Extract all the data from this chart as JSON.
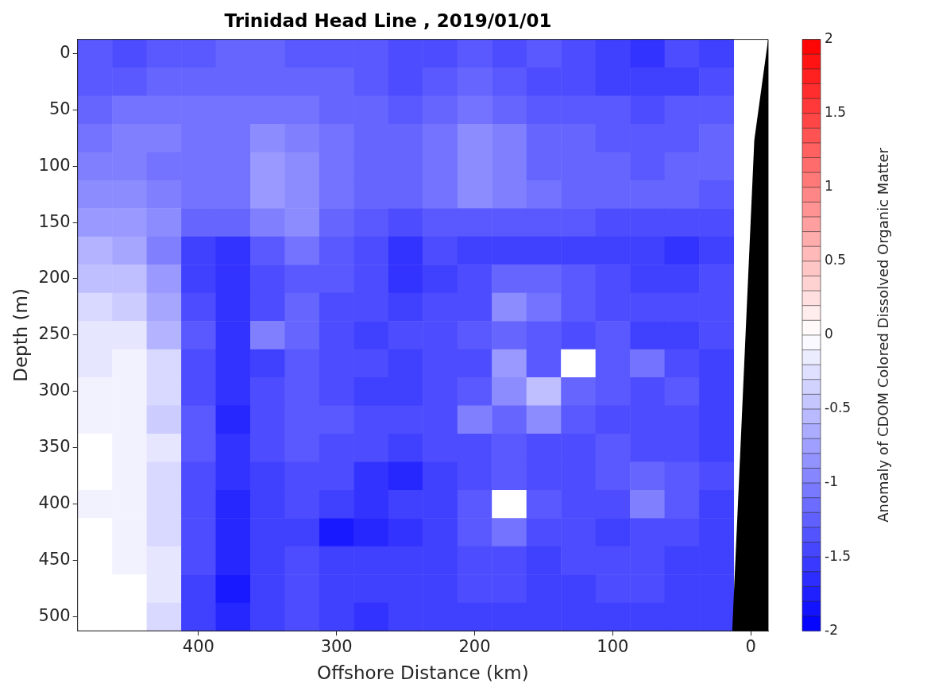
{
  "chart_data": {
    "type": "heatmap",
    "title": "Trinidad Head Line , 2019/01/01",
    "xlabel": "Offshore Distance (km)",
    "ylabel": "Depth (m)",
    "clabel": "Anomaly of CDOM Colored Dissolved Organic Matter",
    "clim": [
      -2,
      2
    ],
    "cticks": [
      -2,
      -1.5,
      -1,
      -0.5,
      0,
      0.5,
      1,
      1.5,
      2
    ],
    "categories": [
      null,
      null,
      null,
      "400",
      null,
      null,
      null,
      "300",
      null,
      null,
      null,
      "200",
      null,
      null,
      null,
      "100",
      null,
      null,
      null,
      "0"
    ],
    "y_categories": [
      "0",
      null,
      "50",
      null,
      "100",
      null,
      "150",
      null,
      "200",
      null,
      "250",
      null,
      "300",
      null,
      "350",
      null,
      "400",
      null,
      "450",
      null,
      "500"
    ],
    "cells": [
      [
        -1.3,
        -1.4,
        -1.3,
        -1.3,
        -1.2,
        -1.2,
        -1.3,
        -1.3,
        -1.3,
        -1.4,
        -1.4,
        -1.3,
        -1.4,
        -1.3,
        -1.4,
        -1.5,
        -1.6,
        -1.4,
        -1.5,
        null
      ],
      [
        -1.3,
        -1.3,
        -1.2,
        -1.2,
        -1.2,
        -1.2,
        -1.2,
        -1.2,
        -1.3,
        -1.4,
        -1.3,
        -1.2,
        -1.3,
        -1.4,
        -1.4,
        -1.5,
        -1.5,
        -1.5,
        -1.4,
        null
      ],
      [
        -1.2,
        -1.1,
        -1.1,
        -1.1,
        -1.1,
        -1.1,
        -1.1,
        -1.2,
        -1.2,
        -1.3,
        -1.2,
        -1.1,
        -1.2,
        -1.3,
        -1.3,
        -1.3,
        -1.4,
        -1.3,
        -1.3,
        null
      ],
      [
        -1.1,
        -1.0,
        -1.0,
        -1.1,
        -1.1,
        -0.9,
        -1.0,
        -1.1,
        -1.2,
        -1.2,
        -1.1,
        -0.9,
        -1.0,
        -1.2,
        -1.2,
        -1.3,
        -1.3,
        -1.3,
        -1.2,
        null
      ],
      [
        -1.0,
        -1.0,
        -1.1,
        -1.1,
        -1.1,
        -0.8,
        -0.9,
        -1.1,
        -1.2,
        -1.2,
        -1.1,
        -0.9,
        -1.0,
        -1.2,
        -1.2,
        -1.2,
        -1.3,
        -1.2,
        -1.2,
        null
      ],
      [
        -0.9,
        -0.9,
        -1.0,
        -1.1,
        -1.1,
        -0.8,
        -0.9,
        -1.1,
        -1.2,
        -1.2,
        -1.1,
        -0.9,
        -1.0,
        -1.1,
        -1.2,
        -1.2,
        -1.2,
        -1.2,
        -1.3,
        null
      ],
      [
        -0.8,
        -0.8,
        -0.9,
        -1.2,
        -1.2,
        -1.0,
        -0.9,
        -1.2,
        -1.3,
        -1.4,
        -1.3,
        -1.3,
        -1.3,
        -1.3,
        -1.3,
        -1.4,
        -1.4,
        -1.4,
        -1.4,
        null
      ],
      [
        -0.6,
        -0.7,
        -1.0,
        -1.5,
        -1.6,
        -1.3,
        -1.1,
        -1.3,
        -1.4,
        -1.6,
        -1.4,
        -1.5,
        -1.5,
        -1.5,
        -1.5,
        -1.5,
        -1.5,
        -1.6,
        -1.5,
        null
      ],
      [
        -0.5,
        -0.5,
        -0.8,
        -1.5,
        -1.6,
        -1.4,
        -1.3,
        -1.3,
        -1.4,
        -1.6,
        -1.5,
        -1.4,
        -1.2,
        -1.2,
        -1.3,
        -1.4,
        -1.5,
        -1.5,
        -1.4,
        null
      ],
      [
        -0.3,
        -0.4,
        -0.7,
        -1.4,
        -1.6,
        -1.4,
        -1.2,
        -1.4,
        -1.4,
        -1.5,
        -1.4,
        -1.4,
        -0.9,
        -1.1,
        -1.3,
        -1.4,
        -1.4,
        -1.4,
        -1.4,
        null
      ],
      [
        -0.2,
        -0.2,
        -0.6,
        -1.3,
        -1.6,
        -1.0,
        -1.2,
        -1.4,
        -1.5,
        -1.4,
        -1.4,
        -1.3,
        -1.2,
        -1.3,
        -1.4,
        -1.3,
        -1.5,
        -1.5,
        -1.4,
        null
      ],
      [
        -0.2,
        -0.1,
        -0.3,
        -1.4,
        -1.6,
        -1.5,
        -1.3,
        -1.4,
        -1.4,
        -1.5,
        -1.4,
        -1.4,
        -0.8,
        -1.3,
        0,
        -1.3,
        -1.1,
        -1.4,
        -1.5,
        null
      ],
      [
        -0.1,
        -0.1,
        -0.3,
        -1.4,
        -1.6,
        -1.4,
        -1.3,
        -1.4,
        -1.5,
        -1.5,
        -1.4,
        -1.3,
        -0.9,
        -0.5,
        -1.2,
        -1.3,
        -1.4,
        -1.3,
        -1.5,
        null
      ],
      [
        -0.1,
        -0.1,
        -0.4,
        -1.3,
        -1.7,
        -1.4,
        -1.3,
        -1.3,
        -1.4,
        -1.4,
        -1.4,
        -1.0,
        -1.2,
        -0.9,
        -1.3,
        -1.4,
        -1.4,
        -1.4,
        -1.5,
        null
      ],
      [
        0,
        -0.1,
        -0.2,
        -1.3,
        -1.6,
        -1.4,
        -1.3,
        -1.4,
        -1.4,
        -1.5,
        -1.4,
        -1.4,
        -1.3,
        -1.4,
        -1.4,
        -1.3,
        -1.4,
        -1.4,
        -1.5,
        null
      ],
      [
        0,
        -0.1,
        -0.3,
        -1.4,
        -1.6,
        -1.5,
        -1.4,
        -1.4,
        -1.6,
        -1.7,
        -1.5,
        -1.4,
        -1.3,
        -1.4,
        -1.4,
        -1.3,
        -1.2,
        -1.3,
        -1.4,
        null
      ],
      [
        -0.1,
        -0.1,
        -0.3,
        -1.4,
        -1.7,
        -1.5,
        -1.4,
        -1.5,
        -1.6,
        -1.5,
        -1.5,
        -1.3,
        0,
        -1.3,
        -1.4,
        -1.4,
        -1.0,
        -1.3,
        -1.5,
        null
      ],
      [
        0,
        -0.1,
        -0.3,
        -1.4,
        -1.7,
        -1.5,
        -1.5,
        -1.8,
        -1.7,
        -1.6,
        -1.5,
        -1.3,
        -1.1,
        -1.4,
        -1.4,
        -1.5,
        -1.4,
        -1.4,
        -1.5,
        null
      ],
      [
        0,
        -0.1,
        -0.2,
        -1.4,
        -1.7,
        -1.5,
        -1.4,
        -1.5,
        -1.5,
        -1.5,
        -1.5,
        -1.4,
        -1.4,
        -1.5,
        -1.4,
        -1.4,
        -1.4,
        -1.5,
        -1.5,
        null
      ],
      [
        0,
        0,
        -0.2,
        -1.5,
        -1.8,
        -1.5,
        -1.4,
        -1.5,
        -1.5,
        -1.5,
        -1.5,
        -1.4,
        -1.4,
        -1.5,
        -1.5,
        -1.4,
        -1.4,
        -1.5,
        -1.5,
        null
      ],
      [
        0,
        0,
        -0.3,
        -1.5,
        -1.7,
        -1.5,
        -1.4,
        -1.5,
        -1.6,
        -1.5,
        -1.5,
        -1.5,
        -1.5,
        -1.5,
        -1.5,
        -1.5,
        -1.5,
        -1.5,
        -1.5,
        null
      ]
    ]
  }
}
